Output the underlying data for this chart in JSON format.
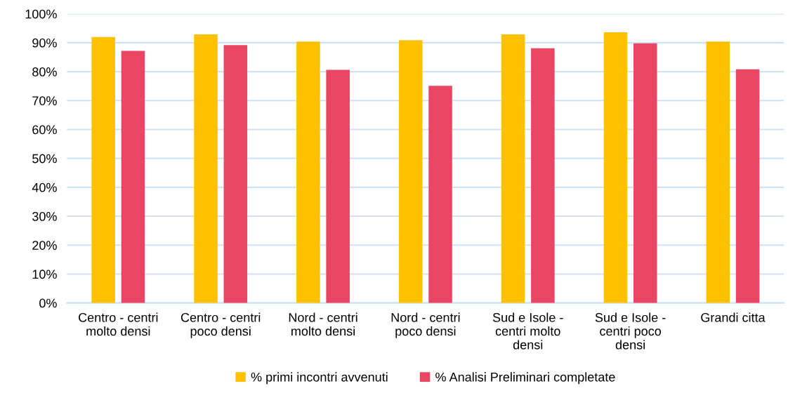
{
  "chart_data": {
    "type": "bar",
    "categories": [
      "Centro - centri\nmolto densi",
      "Centro - centri\npoco densi",
      "Nord - centri\nmolto densi",
      "Nord - centri\npoco densi",
      "Sud e Isole -\ncentri molto\ndensi",
      "Sud e Isole -\ncentri poco\ndensi",
      "Grandi citta"
    ],
    "series": [
      {
        "name": "% primi incontri avvenuti",
        "color": "#ffc000",
        "values": [
          92.0,
          92.9,
          90.4,
          90.9,
          92.9,
          93.6,
          90.4
        ]
      },
      {
        "name": "% Analisi Preliminari completate",
        "color": "#e94663",
        "values": [
          87.2,
          89.2,
          80.6,
          75.1,
          88.1,
          89.8,
          80.8
        ]
      }
    ],
    "ylim": [
      0,
      100
    ],
    "yticks": [
      {
        "value": 0,
        "label": "0%"
      },
      {
        "value": 10,
        "label": "10%"
      },
      {
        "value": 20,
        "label": "20%"
      },
      {
        "value": 30,
        "label": "30%"
      },
      {
        "value": 40,
        "label": "40%"
      },
      {
        "value": 50,
        "label": "50%"
      },
      {
        "value": 60,
        "label": "60%"
      },
      {
        "value": 70,
        "label": "70%"
      },
      {
        "value": 80,
        "label": "80%"
      },
      {
        "value": 90,
        "label": "90%"
      },
      {
        "value": 100,
        "label": "100%"
      }
    ],
    "grid": "y",
    "legend": "bottom"
  }
}
